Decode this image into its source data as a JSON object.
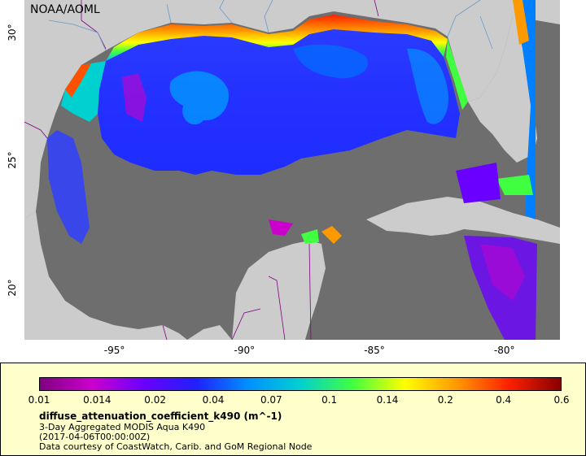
{
  "map": {
    "credit": "NOAA/AOML",
    "lon_ticks": [
      {
        "value": -95,
        "label": "-95°"
      },
      {
        "value": -90,
        "label": "-90°"
      },
      {
        "value": -85,
        "label": "-85°"
      },
      {
        "value": -80,
        "label": "-80°"
      }
    ],
    "lat_ticks": [
      {
        "value": 30,
        "label": "30°"
      },
      {
        "value": 25,
        "label": "25°"
      },
      {
        "value": 20,
        "label": "20°"
      }
    ],
    "colors": {
      "land": "#cccccc",
      "no_data": "#6e6e6e",
      "borders": "#800080",
      "rivers": "#6699cc"
    }
  },
  "legend": {
    "ticks": [
      "0.01",
      "0.014",
      "0.02",
      "0.04",
      "0.07",
      "0.1",
      "0.14",
      "0.2",
      "0.4",
      "0.6"
    ],
    "variable": "diffuse_attenuation_coefficient_k490 (m^-1)",
    "line1": "3-Day Aggregated MODIS Aqua K490",
    "line2": "(2017-04-06T00:00:00Z)",
    "line3": "Data courtesy of CoastWatch, Carib. and GoM Regional Node",
    "colormap": [
      "#800080",
      "#cc00cc",
      "#6a00ff",
      "#2020ff",
      "#0090ff",
      "#00d0d0",
      "#40ff40",
      "#ffff00",
      "#ff9900",
      "#ff2000",
      "#880000"
    ]
  }
}
